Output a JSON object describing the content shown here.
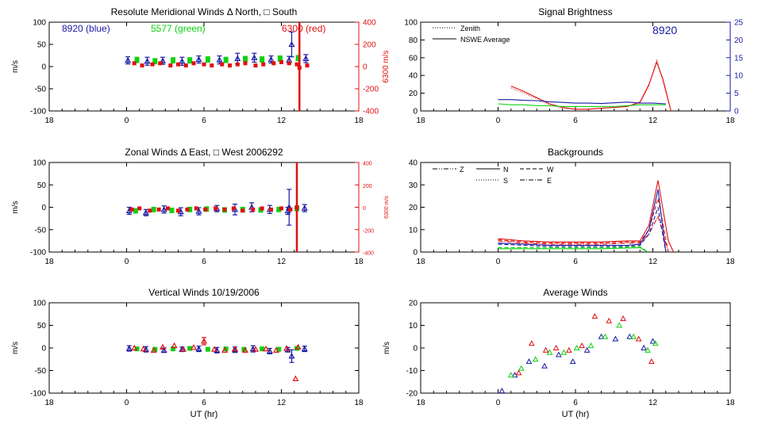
{
  "colors": {
    "axis": "#000000",
    "blue": "#1a1aa6",
    "green": "#10d010",
    "red": "#e01010"
  },
  "chart_data": [
    {
      "id": "meridional",
      "type": "scatter",
      "title": "Resolute Meridional Winds Δ North, □ South",
      "xlabel": "",
      "ylabel": "m/s",
      "ylabel_right": "6300 m/s",
      "xlim": [
        18,
        42
      ],
      "xticklabels": [
        "18",
        "0",
        "6",
        "12",
        "18"
      ],
      "ylim": [
        -100,
        100
      ],
      "yticks": [
        -100,
        -50,
        0,
        50,
        100
      ],
      "ylim_right": [
        -400,
        400
      ],
      "yticks_right": [
        -400,
        -200,
        0,
        200,
        400
      ],
      "annotations": [
        {
          "text": "8920 (blue)",
          "color": "blue"
        },
        {
          "text": "5577 (green)",
          "color": "green"
        },
        {
          "text": "6300 (red)",
          "color": "red"
        }
      ],
      "series": [
        {
          "color": "blue",
          "x": [
            24.1,
            25.6,
            26.8,
            28.3,
            29.6,
            31.2,
            32.6,
            33.9,
            35.2,
            36.6,
            37.9,
            36.8
          ],
          "y": [
            14,
            12,
            13,
            12,
            16,
            15,
            18,
            20,
            16,
            15,
            18,
            50
          ],
          "err": [
            8,
            9,
            8,
            9,
            8,
            9,
            12,
            10,
            8,
            8,
            9,
            28
          ]
        },
        {
          "color": "green",
          "x": [
            24.8,
            26.2,
            27.6,
            28.9,
            30.3,
            31.7,
            33.2,
            34.5,
            35.9,
            37.3
          ],
          "y": [
            15,
            12,
            14,
            14,
            16,
            15,
            17,
            16,
            18,
            19
          ],
          "err": [
            6,
            6,
            6,
            6,
            6,
            6,
            6,
            6,
            6,
            6
          ]
        },
        {
          "color": "red",
          "axis": "right",
          "x": [
            24.6,
            25.2,
            26.0,
            26.6,
            27.4,
            28.0,
            28.6,
            29.2,
            30.0,
            30.6,
            31.4,
            32.0,
            32.6,
            33.2,
            34.0,
            34.6,
            35.4,
            36.0,
            36.6,
            37.2,
            38.0
          ],
          "y": [
            30,
            10,
            20,
            30,
            10,
            20,
            10,
            30,
            20,
            10,
            20,
            10,
            20,
            30,
            10,
            20,
            30,
            40,
            30,
            20,
            10
          ],
          "err": []
        },
        {
          "color": "red",
          "axis": "right",
          "x": [
            37.4
          ],
          "y": [
            -10
          ],
          "err": [
            420
          ]
        }
      ]
    },
    {
      "id": "zonal",
      "type": "scatter",
      "title": "Zonal Winds Δ East, □ West 2006292",
      "xlabel": "",
      "ylabel": "m/s",
      "ylabel_right": "6300 m/s",
      "xlim": [
        18,
        42
      ],
      "xticklabels": [
        "18",
        "0",
        "6",
        "12",
        "18"
      ],
      "ylim": [
        -100,
        100
      ],
      "yticks": [
        -100,
        -50,
        0,
        50,
        100
      ],
      "ylim_right": [
        -400,
        400
      ],
      "yticks_right": [
        -400,
        -200,
        0,
        200,
        400
      ],
      "series": [
        {
          "color": "blue",
          "x": [
            24.2,
            25.5,
            26.9,
            28.2,
            29.6,
            31.0,
            32.4,
            33.7,
            35.1,
            36.5,
            37.8,
            36.6
          ],
          "y": [
            -8,
            -12,
            -5,
            -10,
            -9,
            -3,
            -5,
            0,
            -5,
            -8,
            -2,
            0
          ],
          "err": [
            8,
            7,
            8,
            9,
            8,
            7,
            12,
            10,
            9,
            8,
            8,
            40
          ]
        },
        {
          "color": "green",
          "x": [
            24.7,
            26.1,
            27.5,
            28.9,
            30.2,
            31.6,
            33.0,
            34.4,
            35.8,
            37.2
          ],
          "y": [
            -8,
            -5,
            -7,
            -5,
            -4,
            -6,
            -5,
            -6,
            -5,
            -3
          ],
          "err": [
            5,
            5,
            5,
            5,
            5,
            5,
            5,
            5,
            5,
            5
          ]
        },
        {
          "color": "red",
          "axis": "right",
          "x": [
            24.4,
            25.0,
            25.8,
            26.5,
            27.2,
            28.0,
            28.7,
            29.4,
            30.1,
            30.9,
            31.6,
            32.3,
            33.0,
            33.8,
            34.5,
            35.2,
            36.0,
            36.7
          ],
          "y": [
            -20,
            -10,
            -30,
            -20,
            -10,
            -30,
            -20,
            -10,
            -20,
            -10,
            -20,
            -10,
            -30,
            -20,
            -10,
            -20,
            -10,
            -20
          ],
          "err": []
        },
        {
          "color": "red",
          "axis": "right",
          "x": [
            37.2
          ],
          "y": [
            0
          ],
          "err": [
            420
          ]
        }
      ]
    },
    {
      "id": "vertical",
      "type": "scatter",
      "title": "Vertical Winds 10/19/2006",
      "xlabel": "UT (hr)",
      "ylabel": "m/s",
      "xlim": [
        18,
        42
      ],
      "xticklabels": [
        "18",
        "0",
        "6",
        "12",
        "18"
      ],
      "ylim": [
        -100,
        100
      ],
      "yticks": [
        -100,
        -50,
        0,
        50,
        100
      ],
      "series": [
        {
          "color": "blue",
          "x": [
            24.2,
            25.5,
            26.9,
            28.3,
            29.6,
            31.0,
            32.4,
            33.8,
            35.1,
            36.5,
            37.8,
            36.8
          ],
          "y": [
            -1,
            -3,
            -5,
            -3,
            -2,
            -5,
            -4,
            -2,
            -7,
            -4,
            -2,
            -18
          ],
          "err": [
            6,
            6,
            5,
            5,
            6,
            6,
            6,
            7,
            6,
            5,
            6,
            14
          ]
        },
        {
          "color": "green",
          "x": [
            24.8,
            26.2,
            27.6,
            28.9,
            30.3,
            31.7,
            33.1,
            34.5,
            35.8,
            37.2
          ],
          "y": [
            -2,
            -3,
            -2,
            -1,
            -3,
            -2,
            -3,
            -2,
            -3,
            -1
          ],
          "err": []
        },
        {
          "color": "red",
          "x": [
            24.6,
            25.3,
            26.1,
            26.8,
            27.7,
            28.4,
            29.2,
            30.0,
            30.8,
            31.6,
            32.4,
            33.2,
            34.0,
            34.8,
            35.6,
            36.4,
            37.3
          ],
          "y": [
            0,
            -2,
            -5,
            2,
            5,
            -3,
            1,
            15,
            -3,
            -5,
            -2,
            -5,
            -3,
            -2,
            -5,
            -1,
            2
          ],
          "err": [
            0,
            0,
            0,
            0,
            0,
            0,
            0,
            8,
            0,
            0,
            0,
            0,
            0,
            0,
            0,
            0,
            0
          ]
        },
        {
          "color": "red",
          "x": [
            37.1
          ],
          "y": [
            -68
          ],
          "err": [
            0
          ]
        }
      ]
    },
    {
      "id": "signal",
      "type": "line",
      "title": "Signal Brightness",
      "xlabel": "",
      "ylabel": "",
      "xlim": [
        18,
        42
      ],
      "xticklabels": [
        "18",
        "0",
        "6",
        "12",
        "18"
      ],
      "ylim": [
        0,
        100
      ],
      "yticks": [
        0,
        20,
        40,
        60,
        80,
        100
      ],
      "ylim_right": [
        0,
        25
      ],
      "yticks_right": [
        0,
        5,
        10,
        15,
        20,
        25
      ],
      "legend": [
        {
          "label": "Zenith",
          "style": "dotted"
        },
        {
          "label": "NSWE Average",
          "style": "solid"
        }
      ],
      "annotation": "8920",
      "series": [
        {
          "color": "red",
          "style": "solid",
          "x": [
            25,
            26,
            27,
            28,
            29,
            30,
            31,
            32,
            33,
            34,
            35,
            35.7,
            36.3,
            36.8,
            37.4
          ],
          "y": [
            28,
            22,
            15,
            8,
            4,
            2,
            2,
            3,
            4,
            5,
            10,
            30,
            55,
            35,
            0
          ]
        },
        {
          "color": "red",
          "style": "dotted",
          "x": [
            25,
            26,
            27,
            28,
            29,
            30,
            31,
            32,
            33,
            34,
            35,
            35.7,
            36.3,
            36.8,
            37.4
          ],
          "y": [
            26,
            20,
            14,
            7,
            3,
            2,
            2,
            3,
            4,
            5,
            9,
            28,
            58,
            32,
            0
          ]
        },
        {
          "color": "green",
          "style": "solid",
          "x": [
            24,
            25,
            26,
            27,
            28,
            29,
            30,
            31,
            32,
            33,
            34,
            35,
            36,
            37
          ],
          "y": [
            8,
            7,
            7,
            6,
            6,
            5,
            5,
            5,
            5,
            5,
            6,
            7,
            7,
            7
          ]
        },
        {
          "color": "blue",
          "style": "solid",
          "axis": "right",
          "x": [
            24,
            25,
            26,
            27,
            28,
            29,
            30,
            31,
            32,
            33,
            34,
            35,
            36,
            37
          ],
          "y": [
            3.2,
            3.2,
            3.0,
            2.9,
            2.6,
            2.4,
            2.2,
            2.2,
            2.1,
            2.3,
            2.5,
            2.2,
            2.2,
            2.0
          ]
        }
      ]
    },
    {
      "id": "backgrounds",
      "type": "line",
      "title": "Backgrounds",
      "xlabel": "",
      "ylabel": "",
      "xlim": [
        18,
        42
      ],
      "xticklabels": [
        "18",
        "0",
        "6",
        "12",
        "18"
      ],
      "ylim": [
        0,
        40
      ],
      "yticks": [
        0,
        10,
        20,
        30,
        40
      ],
      "legend": [
        {
          "label": "Z",
          "style": "dashdotdot"
        },
        {
          "label": "N",
          "style": "solid"
        },
        {
          "label": "W",
          "style": "dashed"
        },
        {
          "label": "S",
          "style": "dotted"
        },
        {
          "label": "E",
          "style": "dashdot"
        }
      ],
      "series": [
        {
          "color": "red",
          "style": "solid",
          "x": [
            24,
            26,
            28,
            30,
            32,
            34,
            35,
            35.7,
            36.4,
            37.2,
            37.6
          ],
          "y": [
            6,
            5,
            4.5,
            4.5,
            4.5,
            5,
            5,
            12,
            32,
            5,
            0
          ]
        },
        {
          "color": "red",
          "style": "dashed",
          "x": [
            24,
            26,
            28,
            30,
            32,
            34,
            35,
            35.7,
            36.4,
            37.2
          ],
          "y": [
            5.5,
            4.5,
            4,
            4,
            4,
            4.5,
            4.5,
            10,
            24,
            0
          ]
        },
        {
          "color": "red",
          "style": "dashdot",
          "x": [
            24,
            26,
            28,
            30,
            32,
            34,
            35,
            35.7,
            36.4,
            37.2
          ],
          "y": [
            5,
            4,
            3.5,
            3.5,
            3.5,
            4,
            4,
            8,
            16,
            0
          ]
        },
        {
          "color": "blue",
          "style": "solid",
          "x": [
            24,
            26,
            28,
            30,
            32,
            34,
            35,
            35.7,
            36.4,
            37.0
          ],
          "y": [
            4,
            3.5,
            3,
            3,
            3,
            3,
            3.5,
            10,
            28,
            0
          ]
        },
        {
          "color": "blue",
          "style": "dashed",
          "x": [
            24,
            26,
            28,
            30,
            32,
            34,
            35,
            35.7,
            36.4,
            37.0
          ],
          "y": [
            3.5,
            3,
            2.5,
            2.5,
            2.5,
            2.5,
            3,
            8,
            20,
            0
          ]
        },
        {
          "color": "green",
          "style": "solid",
          "x": [
            24,
            26,
            28,
            30,
            32,
            34,
            35,
            35.6
          ],
          "y": [
            1.5,
            1.5,
            1.5,
            1.5,
            1.5,
            1.8,
            2,
            0
          ]
        },
        {
          "color": "green",
          "style": "dashed",
          "x": [
            24,
            26,
            28,
            30,
            32,
            34,
            35,
            35.6
          ],
          "y": [
            2,
            2,
            2,
            2,
            2,
            2.2,
            2.5,
            0
          ]
        }
      ]
    },
    {
      "id": "average",
      "type": "scatter",
      "title": "Average Winds",
      "xlabel": "UT (hr)",
      "ylabel": "m/s",
      "xlim": [
        18,
        42
      ],
      "xticklabels": [
        "18",
        "0",
        "6",
        "12",
        "18"
      ],
      "ylim": [
        -20,
        20
      ],
      "yticks": [
        -20,
        -10,
        0,
        10,
        20
      ],
      "series": [
        {
          "color": "blue",
          "x": [
            24.3,
            25.3,
            26.4,
            27.6,
            28.7,
            29.8,
            30.9,
            32.0,
            33.1,
            34.2,
            35.3,
            36.0
          ],
          "y": [
            -19,
            -12,
            -6,
            -8,
            -3,
            -6,
            -1,
            5,
            4,
            5,
            0,
            3
          ]
        },
        {
          "color": "green",
          "x": [
            25.0,
            25.8,
            26.9,
            28.0,
            29.1,
            30.1,
            31.2,
            32.3,
            33.4,
            34.5,
            35.6,
            36.2
          ],
          "y": [
            -12,
            -9,
            -5,
            -2,
            -2,
            0,
            1,
            5,
            10,
            5,
            -1,
            2
          ]
        },
        {
          "color": "red",
          "x": [
            25.6,
            26.6,
            27.7,
            28.5,
            29.5,
            30.5,
            31.5,
            32.6,
            33.7,
            34.9,
            35.9
          ],
          "y": [
            -11,
            2,
            -1,
            0,
            -1,
            1,
            14,
            12,
            13,
            4,
            -6
          ]
        }
      ]
    }
  ]
}
